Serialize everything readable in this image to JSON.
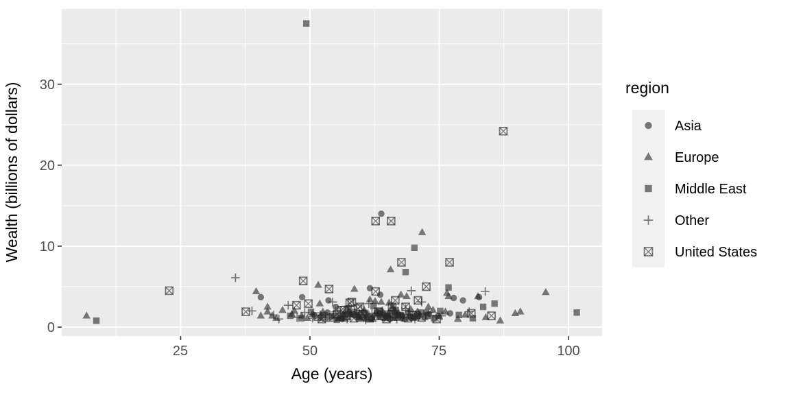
{
  "chart_data": {
    "type": "scatter",
    "title": "",
    "xlabel": "Age (years)",
    "ylabel": "Wealth (billions of dollars)",
    "xlim": [
      2,
      106.5
    ],
    "ylim": [
      -1.1,
      39.3
    ],
    "xticks": [
      25,
      50,
      75,
      100
    ],
    "yticks": [
      0,
      10,
      20,
      30
    ],
    "xticks_minor": [
      12.5,
      37.5,
      62.5,
      87.5
    ],
    "yticks_minor": [
      5,
      15,
      25,
      35
    ],
    "grid": "major+minor",
    "legend": {
      "title": "region",
      "position": "right"
    },
    "colors": {
      "panel_bg": "#EBEBEB",
      "grid": "#FFFFFF",
      "marker": "rgba(38,38,38,0.6)",
      "tick_label": "#4D4D4D",
      "tick_mark": "#333333",
      "axis_title": "#000000",
      "legend_key_bg": "#F1F1F1"
    },
    "series": [
      {
        "name": "Asia",
        "marker": "circle",
        "points": [
          [
            63.8,
            14.0
          ],
          [
            40.5,
            3.7
          ],
          [
            48.5,
            3.7
          ],
          [
            53.6,
            3.3
          ],
          [
            61.6,
            4.8
          ],
          [
            63.6,
            4.0
          ],
          [
            77.8,
            3.6
          ],
          [
            79.6,
            3.3
          ],
          [
            82.7,
            3.7
          ],
          [
            57.0,
            1.5
          ],
          [
            59.0,
            1.3
          ],
          [
            60.5,
            1.8
          ],
          [
            62.0,
            1.1
          ],
          [
            64.0,
            1.5
          ],
          [
            66.0,
            2.2
          ],
          [
            67.5,
            1.2
          ],
          [
            69.0,
            1.8
          ],
          [
            71.0,
            1.4
          ],
          [
            77.1,
            1.7
          ],
          [
            55.0,
            2.5
          ],
          [
            52.0,
            1.2
          ],
          [
            65.5,
            1.0
          ],
          [
            73.0,
            1.6
          ],
          [
            56.2,
            1.0
          ],
          [
            58.2,
            1.6
          ],
          [
            61.0,
            1.3
          ],
          [
            63.1,
            1.8
          ],
          [
            65.0,
            1.4
          ],
          [
            67.8,
            1.5
          ],
          [
            70.2,
            1.2
          ],
          [
            72.5,
            1.8
          ],
          [
            74.8,
            1.4
          ],
          [
            50.8,
            1.5
          ],
          [
            53.4,
            1.8
          ]
        ]
      },
      {
        "name": "Europe",
        "marker": "triangle",
        "points": [
          [
            6.8,
            1.4
          ],
          [
            39.6,
            4.4
          ],
          [
            40.5,
            1.4
          ],
          [
            41.8,
            2.5
          ],
          [
            41.8,
            1.9
          ],
          [
            42.7,
            1.4
          ],
          [
            43.5,
            1.1
          ],
          [
            44.7,
            2.1
          ],
          [
            46.5,
            1.6
          ],
          [
            48.4,
            1.4
          ],
          [
            49.5,
            1.1
          ],
          [
            51.6,
            5.2
          ],
          [
            51.9,
            2.9
          ],
          [
            52.5,
            1.9
          ],
          [
            53.0,
            1.0
          ],
          [
            54.5,
            1.4
          ],
          [
            55.5,
            1.1
          ],
          [
            56.5,
            1.6
          ],
          [
            57.5,
            2.0
          ],
          [
            58.6,
            4.7
          ],
          [
            59.5,
            1.2
          ],
          [
            60.5,
            2.1
          ],
          [
            61.6,
            3.4
          ],
          [
            62.6,
            3.2
          ],
          [
            63.0,
            1.5
          ],
          [
            63.8,
            3.1
          ],
          [
            64.5,
            1.1
          ],
          [
            65.3,
            3.0
          ],
          [
            65.6,
            7.1
          ],
          [
            66.5,
            1.8
          ],
          [
            67.6,
            4.0
          ],
          [
            68.0,
            1.3
          ],
          [
            68.7,
            3.8
          ],
          [
            69.5,
            2.2
          ],
          [
            70.5,
            1.6
          ],
          [
            71.7,
            11.7
          ],
          [
            72.9,
            2.5
          ],
          [
            73.8,
            2.1
          ],
          [
            75.0,
            1.3
          ],
          [
            76.2,
            1.9
          ],
          [
            76.5,
            4.2
          ],
          [
            76.8,
            3.8
          ],
          [
            78.6,
            1.0
          ],
          [
            80.0,
            1.5
          ],
          [
            82.5,
            3.8
          ],
          [
            84.0,
            1.2
          ],
          [
            86.8,
            0.8
          ],
          [
            89.7,
            1.7
          ],
          [
            90.7,
            1.9
          ],
          [
            95.6,
            4.3
          ],
          [
            47.0,
            2.0
          ],
          [
            50.5,
            1.6
          ],
          [
            61.0,
            1.0
          ],
          [
            66.0,
            2.6
          ],
          [
            55.8,
            1.3
          ],
          [
            56.8,
            1.0
          ],
          [
            57.8,
            1.5
          ],
          [
            58.8,
            1.8
          ],
          [
            59.8,
            1.0
          ],
          [
            60.2,
            1.4
          ],
          [
            61.2,
            1.7
          ],
          [
            62.2,
            1.0
          ],
          [
            62.8,
            1.9
          ],
          [
            63.4,
            1.2
          ],
          [
            64.2,
            1.8
          ],
          [
            64.9,
            1.5
          ],
          [
            66.2,
            1.1
          ],
          [
            67.2,
            1.7
          ],
          [
            68.3,
            1.0
          ],
          [
            69.2,
            1.4
          ],
          [
            70.0,
            1.1
          ],
          [
            70.8,
            1.9
          ],
          [
            71.3,
            1.5
          ],
          [
            72.2,
            1.2
          ]
        ]
      },
      {
        "name": "Middle East",
        "marker": "square",
        "points": [
          [
            8.7,
            0.8
          ],
          [
            49.3,
            37.5
          ],
          [
            70.2,
            9.8
          ],
          [
            68.5,
            6.8
          ],
          [
            76.8,
            4.9
          ],
          [
            85.7,
            2.9
          ],
          [
            83.5,
            2.5
          ],
          [
            101.6,
            1.8
          ],
          [
            46.2,
            1.4
          ],
          [
            52.8,
            1.5
          ],
          [
            56.0,
            1.1
          ],
          [
            58.0,
            1.7
          ],
          [
            60.0,
            1.2
          ],
          [
            63.5,
            2.0
          ],
          [
            64.8,
            1.2
          ],
          [
            67.0,
            1.5
          ],
          [
            71.5,
            1.8
          ],
          [
            74.0,
            1.1
          ],
          [
            55.2,
            0.9
          ],
          [
            54.0,
            1.3
          ],
          [
            59.2,
            1.5
          ],
          [
            61.8,
            1.0
          ],
          [
            65.5,
            1.7
          ],
          [
            69.3,
            1.2
          ],
          [
            72.8,
            1.4
          ],
          [
            48.3,
            1.1
          ],
          [
            50.2,
            1.9
          ],
          [
            57.3,
            2.3
          ],
          [
            62.3,
            2.6
          ],
          [
            66.6,
            2.1
          ],
          [
            75.2,
            2.0
          ],
          [
            78.8,
            1.5
          ],
          [
            81.5,
            1.1
          ]
        ]
      },
      {
        "name": "Other",
        "marker": "plus",
        "points": [
          [
            35.6,
            6.1
          ],
          [
            38.8,
            2.0
          ],
          [
            43.0,
            1.5
          ],
          [
            45.8,
            2.7
          ],
          [
            47.5,
            1.2
          ],
          [
            49.0,
            1.8
          ],
          [
            50.5,
            1.1
          ],
          [
            52.0,
            1.5
          ],
          [
            54.4,
            3.1
          ],
          [
            55.0,
            1.9
          ],
          [
            56.5,
            1.3
          ],
          [
            58.0,
            2.2
          ],
          [
            59.5,
            1.6
          ],
          [
            61.4,
            2.9
          ],
          [
            62.5,
            1.4
          ],
          [
            64.0,
            2.0
          ],
          [
            65.5,
            1.2
          ],
          [
            67.0,
            1.6
          ],
          [
            68.5,
            2.3
          ],
          [
            69.6,
            4.5
          ],
          [
            71.6,
            3.1
          ],
          [
            73.0,
            1.8
          ],
          [
            75.5,
            1.4
          ],
          [
            80.8,
            1.9
          ],
          [
            83.9,
            4.4
          ],
          [
            44.0,
            1.0
          ],
          [
            60.8,
            0.9
          ],
          [
            66.8,
            1.0
          ],
          [
            57.2,
            1.0
          ],
          [
            59.0,
            1.2
          ],
          [
            62.0,
            1.7
          ],
          [
            63.7,
            1.4
          ],
          [
            65.2,
            1.7
          ],
          [
            66.3,
            1.3
          ],
          [
            68.0,
            1.2
          ],
          [
            70.3,
            1.0
          ]
        ]
      },
      {
        "name": "United States",
        "marker": "square-x",
        "points": [
          [
            22.8,
            4.5
          ],
          [
            37.6,
            1.9
          ],
          [
            47.4,
            2.7
          ],
          [
            48.7,
            5.7
          ],
          [
            49.7,
            2.9
          ],
          [
            53.7,
            4.7
          ],
          [
            56.1,
            2.1
          ],
          [
            56.6,
            2.1
          ],
          [
            57.7,
            3.0
          ],
          [
            58.1,
            3.1
          ],
          [
            59.3,
            2.3
          ],
          [
            59.7,
            2.5
          ],
          [
            62.7,
            13.1
          ],
          [
            62.7,
            4.4
          ],
          [
            65.7,
            13.1
          ],
          [
            65.9,
            2.5
          ],
          [
            66.5,
            3.3
          ],
          [
            67.7,
            8.0
          ],
          [
            68.5,
            2.5
          ],
          [
            70.9,
            3.3
          ],
          [
            71.6,
            1.2
          ],
          [
            72.5,
            5.0
          ],
          [
            74.5,
            1.0
          ],
          [
            77.0,
            8.0
          ],
          [
            81.2,
            1.7
          ],
          [
            85.1,
            1.4
          ],
          [
            87.4,
            24.2
          ],
          [
            51.5,
            1.3
          ],
          [
            55.3,
            1.6
          ],
          [
            63.2,
            1.9
          ],
          [
            69.8,
            1.5
          ],
          [
            54.5,
            1.2
          ],
          [
            57.0,
            1.4
          ],
          [
            58.5,
            1.1
          ],
          [
            60.2,
            1.6
          ],
          [
            61.5,
            1.1
          ],
          [
            63.9,
            1.4
          ],
          [
            64.8,
            1.0
          ],
          [
            66.1,
            1.6
          ],
          [
            67.3,
            1.3
          ],
          [
            69.0,
            1.1
          ],
          [
            70.5,
            1.5
          ],
          [
            52.3,
            1.0
          ]
        ]
      }
    ]
  }
}
